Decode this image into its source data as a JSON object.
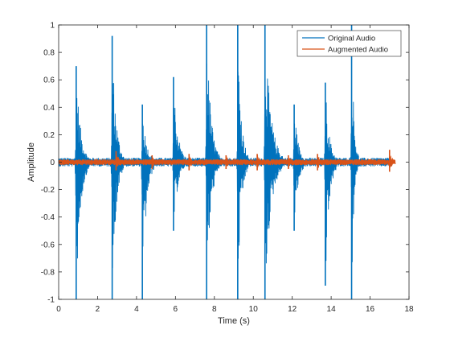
{
  "chart_data": {
    "type": "line",
    "xlabel": "Time (s)",
    "ylabel": "Amplitude",
    "xlim": [
      0,
      18
    ],
    "ylim": [
      -1,
      1
    ],
    "xticks": [
      0,
      2,
      4,
      6,
      8,
      10,
      12,
      14,
      16,
      18
    ],
    "yticks": [
      -1,
      -0.8,
      -0.6,
      -0.4,
      -0.2,
      0,
      0.2,
      0.4,
      0.6,
      0.8,
      1
    ],
    "xtick_labels": [
      "0",
      "2",
      "4",
      "6",
      "8",
      "10",
      "12",
      "14",
      "16",
      "18"
    ],
    "ytick_labels": [
      "-1",
      "-0.8",
      "-0.6",
      "-0.4",
      "-0.2",
      "0",
      "0.2",
      "0.4",
      "0.6",
      "0.8",
      "1"
    ],
    "grid": false,
    "legend_position": "top-right",
    "series": [
      {
        "name": "Original Audio",
        "color": "#0072BD",
        "x_range": [
          0,
          17.1
        ],
        "noise_floor": 0.03,
        "bursts": [
          {
            "t": 0.9,
            "up": 0.7,
            "down": -1.0,
            "width": 0.22
          },
          {
            "t": 2.75,
            "up": 0.92,
            "down": -1.0,
            "width": 0.2
          },
          {
            "t": 4.3,
            "up": 0.42,
            "down": -1.0,
            "width": 0.2
          },
          {
            "t": 5.9,
            "up": 0.62,
            "down": -0.5,
            "width": 0.22
          },
          {
            "t": 7.6,
            "up": 1.0,
            "down": -1.0,
            "width": 0.22
          },
          {
            "t": 9.2,
            "up": 1.0,
            "down": -1.0,
            "width": 0.18
          },
          {
            "t": 10.6,
            "up": 1.0,
            "down": -1.0,
            "width": 0.3
          },
          {
            "t": 12.1,
            "up": 0.42,
            "down": -0.5,
            "width": 0.2
          },
          {
            "t": 13.7,
            "up": 0.58,
            "down": -0.9,
            "width": 0.2
          },
          {
            "t": 15.05,
            "up": 1.0,
            "down": -1.0,
            "width": 0.12
          }
        ]
      },
      {
        "name": "Augmented Audio",
        "color": "#D95319",
        "x_range": [
          0,
          17.3
        ],
        "noise_floor": 0.02,
        "bursts": [
          {
            "t": 2.95,
            "up": 0.08,
            "down": -0.06,
            "width": 0.15
          },
          {
            "t": 4.8,
            "up": 0.05,
            "down": -0.05,
            "width": 0.15
          },
          {
            "t": 6.7,
            "up": 0.06,
            "down": -0.06,
            "width": 0.15
          },
          {
            "t": 8.6,
            "up": 0.05,
            "down": -0.05,
            "width": 0.15
          },
          {
            "t": 10.2,
            "up": 0.06,
            "down": -0.06,
            "width": 0.15
          },
          {
            "t": 11.8,
            "up": 0.05,
            "down": -0.05,
            "width": 0.15
          },
          {
            "t": 13.3,
            "up": 0.06,
            "down": -0.06,
            "width": 0.15
          },
          {
            "t": 17.0,
            "up": 0.09,
            "down": -0.07,
            "width": 0.15
          }
        ]
      }
    ]
  }
}
